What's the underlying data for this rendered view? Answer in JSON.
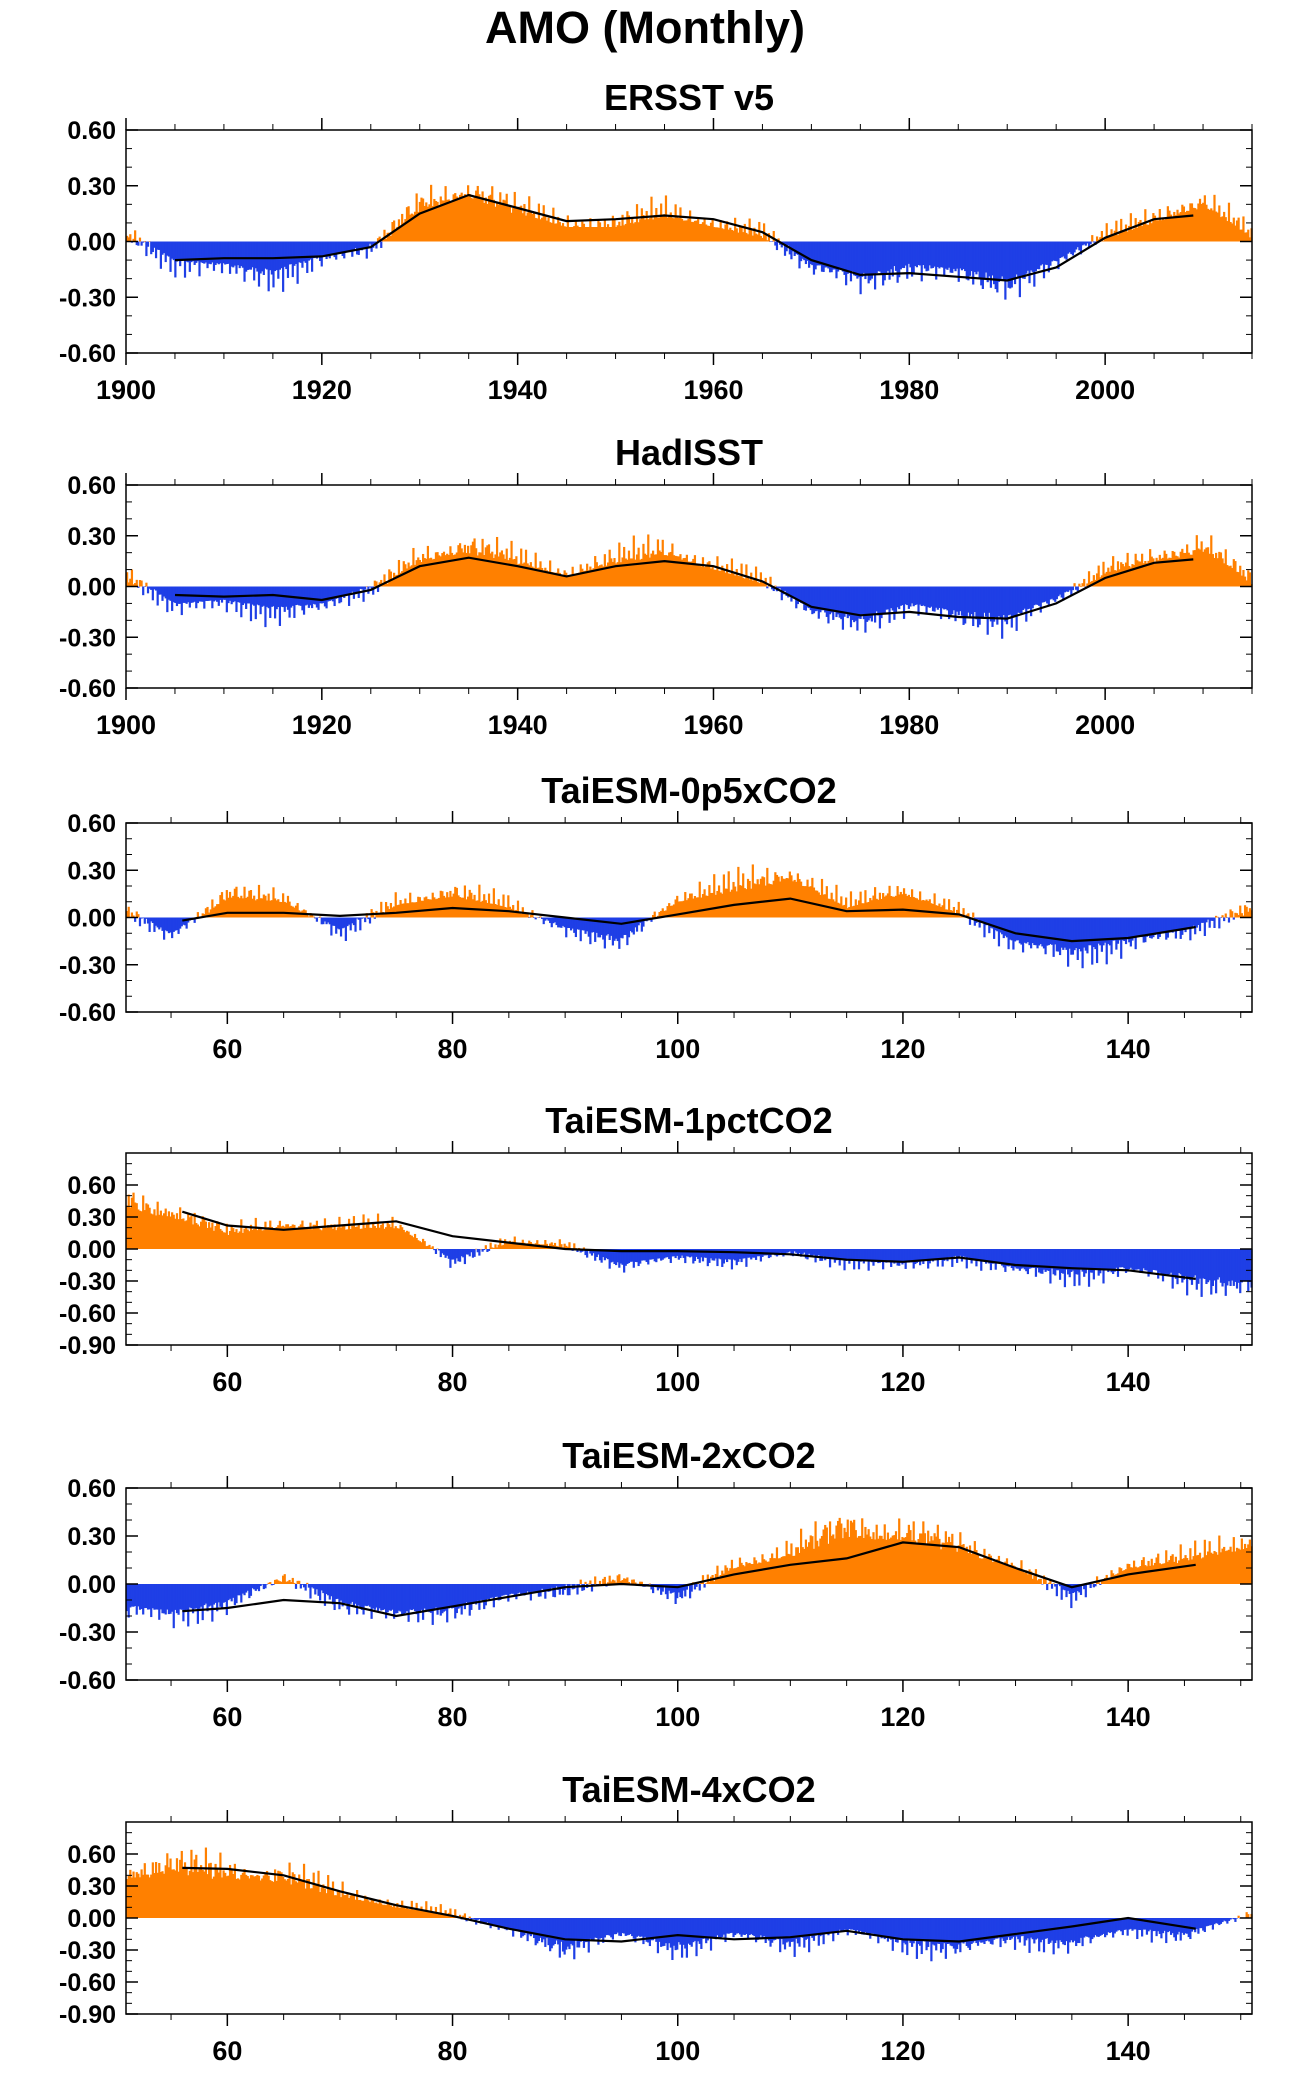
{
  "title": "AMO (Monthly)",
  "colors": {
    "positive": "#ff8000",
    "negative": "#1f3fe6",
    "smooth": "#000000"
  },
  "chart_data": [
    {
      "type": "bar",
      "title": "ERSST v5",
      "xlim": [
        1900,
        2015
      ],
      "ylim": [
        -0.6,
        0.6
      ],
      "xticks": [
        "1900",
        "1920",
        "1940",
        "1960",
        "1980",
        "2000"
      ],
      "yticks": [
        "0.60",
        "0.30",
        "0.00",
        "-0.30",
        "-0.60"
      ],
      "x": [
        1900,
        1905,
        1910,
        1915,
        1920,
        1925,
        1930,
        1935,
        1940,
        1945,
        1950,
        1955,
        1960,
        1965,
        1970,
        1975,
        1980,
        1985,
        1990,
        1995,
        2000,
        2005,
        2010,
        2015
      ],
      "values": [
        0.05,
        -0.15,
        -0.18,
        -0.22,
        -0.12,
        -0.05,
        0.25,
        0.35,
        0.22,
        0.12,
        0.12,
        0.2,
        0.12,
        0.06,
        -0.18,
        -0.25,
        -0.18,
        -0.22,
        -0.28,
        -0.15,
        0.05,
        0.15,
        0.28,
        0.05
      ],
      "smooth_x": [
        1905,
        1910,
        1915,
        1920,
        1925,
        1930,
        1935,
        1940,
        1945,
        1950,
        1955,
        1960,
        1965,
        1970,
        1975,
        1980,
        1985,
        1990,
        1995,
        2000,
        2005,
        2009
      ],
      "smooth_y": [
        -0.1,
        -0.09,
        -0.09,
        -0.08,
        -0.03,
        0.15,
        0.25,
        0.18,
        0.11,
        0.12,
        0.14,
        0.12,
        0.05,
        -0.1,
        -0.18,
        -0.17,
        -0.19,
        -0.21,
        -0.14,
        0.02,
        0.12,
        0.14
      ]
    },
    {
      "type": "bar",
      "title": "HadISST",
      "xlim": [
        1900,
        2015
      ],
      "ylim": [
        -0.6,
        0.6
      ],
      "xticks": [
        "1900",
        "1920",
        "1940",
        "1960",
        "1980",
        "2000"
      ],
      "yticks": [
        "0.60",
        "0.30",
        "0.00",
        "-0.30",
        "-0.60"
      ],
      "x": [
        1900,
        1905,
        1910,
        1915,
        1920,
        1925,
        1930,
        1935,
        1940,
        1945,
        1950,
        1955,
        1960,
        1965,
        1970,
        1975,
        1980,
        1985,
        1990,
        1995,
        2000,
        2005,
        2010,
        2015
      ],
      "values": [
        0.08,
        -0.15,
        -0.12,
        -0.18,
        -0.15,
        -0.02,
        0.22,
        0.3,
        0.2,
        0.1,
        0.2,
        0.28,
        0.15,
        0.05,
        -0.2,
        -0.25,
        -0.15,
        -0.22,
        -0.25,
        -0.1,
        0.12,
        0.22,
        0.3,
        0.05
      ],
      "smooth_x": [
        1905,
        1910,
        1915,
        1920,
        1925,
        1930,
        1935,
        1940,
        1945,
        1950,
        1955,
        1960,
        1965,
        1970,
        1975,
        1980,
        1985,
        1990,
        1995,
        2000,
        2005,
        2009
      ],
      "smooth_y": [
        -0.05,
        -0.06,
        -0.05,
        -0.08,
        -0.02,
        0.12,
        0.17,
        0.12,
        0.06,
        0.12,
        0.15,
        0.12,
        0.03,
        -0.12,
        -0.17,
        -0.15,
        -0.18,
        -0.19,
        -0.1,
        0.05,
        0.14,
        0.16
      ]
    },
    {
      "type": "bar",
      "title": "TaiESM-0p5xCO2",
      "xlim": [
        51,
        151
      ],
      "ylim": [
        -0.6,
        0.6
      ],
      "xticks": [
        "60",
        "80",
        "100",
        "120",
        "140"
      ],
      "yticks": [
        "0.60",
        "0.30",
        "0.00",
        "-0.30",
        "-0.60"
      ],
      "x": [
        51,
        55,
        60,
        65,
        70,
        75,
        80,
        85,
        90,
        95,
        100,
        105,
        110,
        115,
        120,
        125,
        130,
        135,
        140,
        145,
        151
      ],
      "values": [
        0.05,
        -0.15,
        0.18,
        0.15,
        -0.12,
        0.12,
        0.2,
        0.1,
        -0.1,
        -0.18,
        0.15,
        0.25,
        0.35,
        0.1,
        0.22,
        0.05,
        -0.22,
        -0.28,
        -0.2,
        -0.12,
        0.08
      ],
      "smooth_x": [
        56,
        60,
        65,
        70,
        75,
        80,
        85,
        90,
        95,
        100,
        105,
        110,
        115,
        120,
        125,
        130,
        135,
        140,
        146
      ],
      "smooth_y": [
        -0.02,
        0.03,
        0.03,
        0.01,
        0.03,
        0.06,
        0.04,
        0.0,
        -0.04,
        0.02,
        0.08,
        0.12,
        0.04,
        0.05,
        0.02,
        -0.1,
        -0.15,
        -0.13,
        -0.06
      ]
    },
    {
      "type": "bar",
      "title": "TaiESM-1pctCO2",
      "xlim": [
        51,
        151
      ],
      "ylim": [
        -0.9,
        0.9
      ],
      "xticks": [
        "60",
        "80",
        "100",
        "120",
        "140"
      ],
      "yticks": [
        "0.60",
        "0.30",
        "0.00",
        "-0.30",
        "-0.60",
        "-0.90"
      ],
      "x": [
        51,
        55,
        60,
        65,
        70,
        75,
        80,
        85,
        90,
        95,
        100,
        105,
        110,
        115,
        120,
        125,
        130,
        135,
        140,
        145,
        151
      ],
      "values": [
        0.55,
        0.45,
        0.2,
        0.3,
        0.25,
        0.3,
        -0.15,
        0.1,
        0.05,
        -0.2,
        -0.1,
        -0.15,
        -0.05,
        -0.15,
        -0.2,
        -0.1,
        -0.25,
        -0.3,
        -0.25,
        -0.35,
        -0.45
      ],
      "smooth_x": [
        56,
        60,
        65,
        70,
        75,
        80,
        85,
        90,
        95,
        100,
        105,
        110,
        115,
        120,
        125,
        130,
        135,
        140,
        146
      ],
      "smooth_y": [
        0.35,
        0.22,
        0.18,
        0.22,
        0.26,
        0.12,
        0.06,
        0.0,
        -0.02,
        -0.02,
        -0.03,
        -0.05,
        -0.1,
        -0.12,
        -0.08,
        -0.15,
        -0.18,
        -0.2,
        -0.28
      ]
    },
    {
      "type": "bar",
      "title": "TaiESM-2xCO2",
      "xlim": [
        51,
        151
      ],
      "ylim": [
        -0.6,
        0.6
      ],
      "xticks": [
        "60",
        "80",
        "100",
        "120",
        "140"
      ],
      "yticks": [
        "0.60",
        "0.30",
        "0.00",
        "-0.30",
        "-0.60"
      ],
      "x": [
        51,
        55,
        60,
        65,
        70,
        75,
        80,
        85,
        90,
        95,
        100,
        105,
        110,
        115,
        120,
        125,
        130,
        135,
        140,
        145,
        151
      ],
      "values": [
        -0.2,
        -0.25,
        -0.15,
        0.05,
        -0.15,
        -0.25,
        -0.2,
        -0.1,
        -0.05,
        0.05,
        -0.1,
        0.15,
        0.25,
        0.45,
        0.4,
        0.3,
        0.15,
        -0.1,
        0.15,
        0.2,
        0.35
      ],
      "smooth_x": [
        56,
        60,
        65,
        70,
        75,
        80,
        85,
        90,
        95,
        100,
        105,
        110,
        115,
        120,
        125,
        130,
        135,
        140,
        146
      ],
      "smooth_y": [
        -0.17,
        -0.15,
        -0.1,
        -0.12,
        -0.2,
        -0.14,
        -0.08,
        -0.02,
        0.0,
        -0.02,
        0.06,
        0.12,
        0.16,
        0.26,
        0.23,
        0.1,
        -0.02,
        0.06,
        0.12
      ]
    },
    {
      "type": "bar",
      "title": "TaiESM-4xCO2",
      "xlim": [
        51,
        151
      ],
      "ylim": [
        -0.9,
        0.9
      ],
      "xticks": [
        "60",
        "80",
        "100",
        "120",
        "140"
      ],
      "yticks": [
        "0.60",
        "0.30",
        "0.00",
        "-0.30",
        "-0.60",
        "-0.90"
      ],
      "x": [
        51,
        55,
        60,
        65,
        70,
        75,
        80,
        85,
        90,
        95,
        100,
        105,
        110,
        115,
        120,
        125,
        130,
        135,
        140,
        145,
        151
      ],
      "values": [
        0.55,
        0.6,
        0.55,
        0.5,
        0.3,
        0.15,
        0.05,
        -0.15,
        -0.35,
        -0.2,
        -0.35,
        -0.2,
        -0.3,
        -0.15,
        -0.3,
        -0.35,
        -0.25,
        -0.3,
        -0.15,
        -0.2,
        0.05
      ],
      "smooth_x": [
        56,
        60,
        65,
        70,
        75,
        80,
        85,
        90,
        95,
        100,
        105,
        110,
        115,
        120,
        125,
        130,
        135,
        140,
        146
      ],
      "smooth_y": [
        0.47,
        0.46,
        0.4,
        0.25,
        0.12,
        0.02,
        -0.1,
        -0.2,
        -0.22,
        -0.16,
        -0.2,
        -0.18,
        -0.12,
        -0.2,
        -0.22,
        -0.15,
        -0.08,
        0.0,
        -0.1
      ]
    }
  ]
}
